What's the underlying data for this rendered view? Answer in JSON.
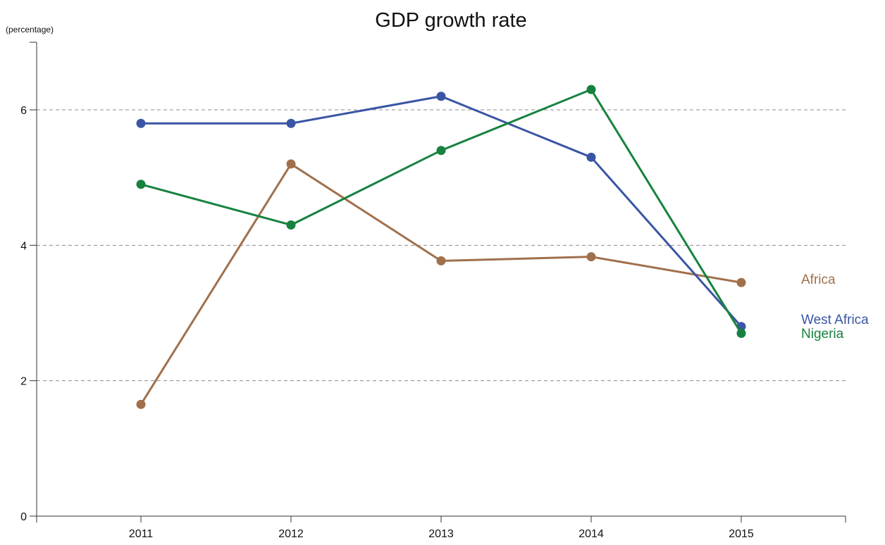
{
  "chart_data": {
    "type": "line",
    "title": "GDP growth rate",
    "ylabel": "(percentage)",
    "xlabel": "",
    "categories": [
      "2011",
      "2012",
      "2013",
      "2014",
      "2015"
    ],
    "ylim": [
      0,
      7
    ],
    "yticks": [
      0,
      2,
      4,
      6
    ],
    "grid": "horizontal dashed at 2, 4, 6",
    "legend": "labels at right end of lines",
    "series": [
      {
        "name": "West Africa",
        "color": "#3a55a4",
        "values": [
          5.8,
          5.8,
          6.2,
          5.3,
          2.8
        ]
      },
      {
        "name": "Nigeria",
        "color": "#17823f",
        "values": [
          4.9,
          4.3,
          5.4,
          6.3,
          2.7
        ]
      },
      {
        "name": "Africa",
        "color": "#a0704c",
        "values": [
          1.65,
          5.2,
          3.77,
          3.83,
          3.45
        ]
      }
    ]
  }
}
